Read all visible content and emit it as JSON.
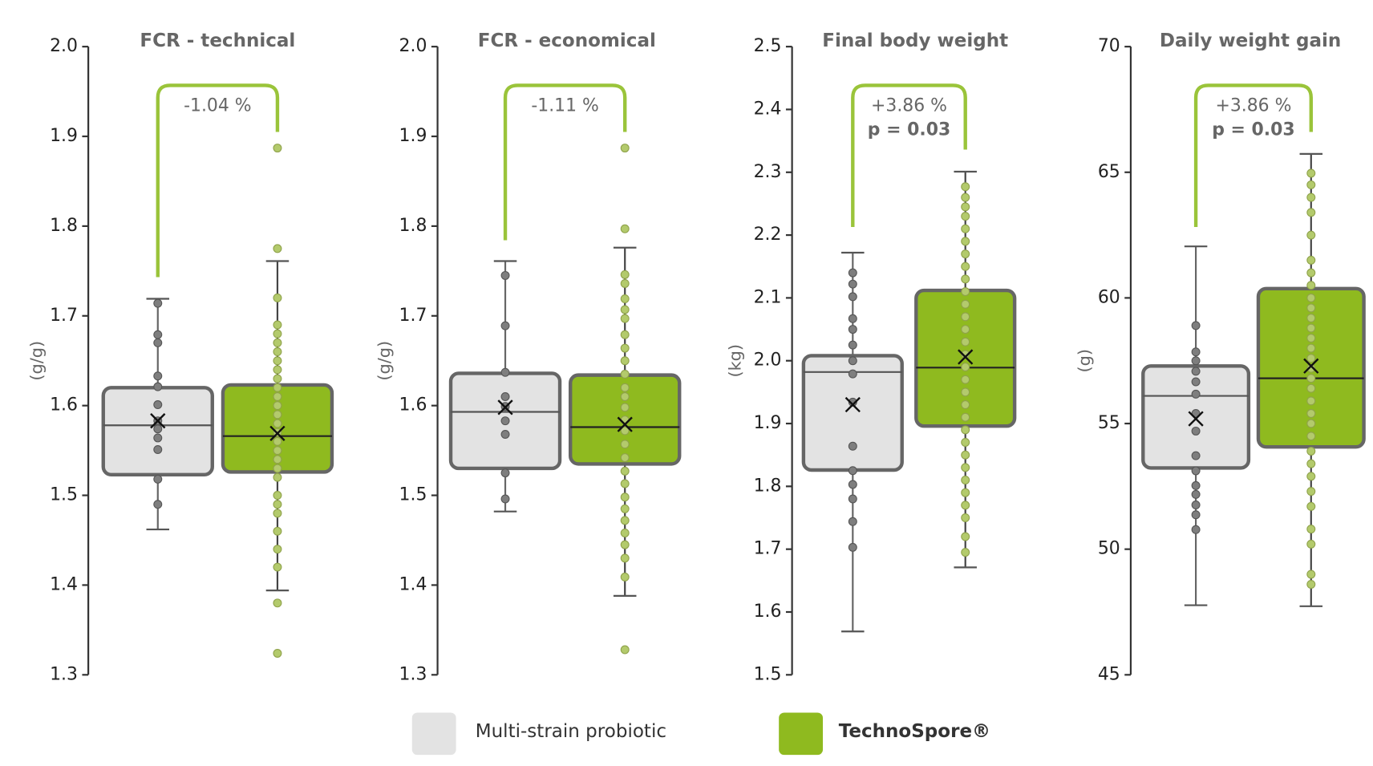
{
  "chart_data": [
    {
      "type": "box",
      "title": "FCR - technical",
      "ylabel": "(g/g)",
      "ylim": [
        1.3,
        2.0
      ],
      "yticks": [
        {
          "value": 2,
          "label": "2.0"
        },
        1.9,
        1.8,
        1.7,
        1.6,
        1.5,
        1.4,
        1.3
      ],
      "annotations": [
        "-1.04 %"
      ],
      "series": [
        {
          "name": "Multi-strain probiotic",
          "color": "#e3e3e3",
          "whisker_low": 1.462,
          "q1": 1.523,
          "median": 1.578,
          "q3": 1.62,
          "whisker_high": 1.719,
          "mean": 1.583,
          "points": [
            1.714,
            1.679,
            1.67,
            1.633,
            1.621,
            1.601,
            1.583,
            1.574,
            1.564,
            1.551,
            1.518,
            1.49
          ]
        },
        {
          "name": "TechnoSpore®",
          "color": "#8fba1f",
          "whisker_low": 1.394,
          "q1": 1.526,
          "median": 1.566,
          "q3": 1.623,
          "whisker_high": 1.761,
          "mean": 1.569,
          "points": [
            1.887,
            1.775,
            1.72,
            1.69,
            1.68,
            1.67,
            1.66,
            1.65,
            1.64,
            1.63,
            1.62,
            1.61,
            1.6,
            1.59,
            1.58,
            1.57,
            1.56,
            1.55,
            1.54,
            1.53,
            1.52,
            1.5,
            1.49,
            1.48,
            1.46,
            1.44,
            1.42,
            1.38,
            1.324
          ]
        }
      ]
    },
    {
      "type": "box",
      "title": "FCR - economical",
      "ylabel": "(g/g)",
      "ylim": [
        1.3,
        2.0
      ],
      "yticks": [
        {
          "value": 2,
          "label": "2.0"
        },
        1.9,
        1.8,
        1.7,
        1.6,
        1.5,
        1.4,
        1.3
      ],
      "annotations": [
        "-1.11 %"
      ],
      "series": [
        {
          "color": "#e3e3e3",
          "whisker_low": 1.482,
          "q1": 1.53,
          "median": 1.593,
          "q3": 1.636,
          "whisker_high": 1.761,
          "mean": 1.598,
          "points": [
            1.745,
            1.689,
            1.637,
            1.61,
            1.599,
            1.583,
            1.568,
            1.525,
            1.496
          ]
        },
        {
          "color": "#8fba1f",
          "whisker_low": 1.388,
          "q1": 1.535,
          "median": 1.576,
          "q3": 1.634,
          "whisker_high": 1.776,
          "mean": 1.579,
          "points": [
            1.887,
            1.797,
            1.746,
            1.736,
            1.719,
            1.707,
            1.697,
            1.679,
            1.664,
            1.65,
            1.635,
            1.62,
            1.61,
            1.598,
            1.584,
            1.572,
            1.557,
            1.542,
            1.527,
            1.513,
            1.498,
            1.485,
            1.472,
            1.458,
            1.445,
            1.43,
            1.409,
            1.328
          ]
        }
      ]
    },
    {
      "type": "box",
      "title": "Final body weight",
      "ylabel": "(kg)",
      "ylim": [
        1.5,
        2.5
      ],
      "yticks": [
        2.5,
        2.4,
        2.3,
        2.2,
        2.1,
        {
          "value": 2,
          "label": "2.0"
        },
        1.9,
        1.8,
        1.7,
        1.6,
        1.5
      ],
      "annotations": [
        "+3.86 %",
        "p = 0.03"
      ],
      "series": [
        {
          "color": "#e3e3e3",
          "whisker_low": 1.569,
          "q1": 1.826,
          "median": 1.982,
          "q3": 2.008,
          "whisker_high": 2.172,
          "mean": 1.93,
          "points": [
            2.14,
            2.122,
            2.102,
            2.067,
            2.05,
            2.025,
            2.0,
            1.979,
            1.934,
            1.864,
            1.825,
            1.803,
            1.78,
            1.744,
            1.703
          ]
        },
        {
          "color": "#8fba1f",
          "whisker_low": 1.671,
          "q1": 1.896,
          "median": 1.989,
          "q3": 2.112,
          "whisker_high": 2.301,
          "mean": 2.006,
          "points": [
            2.277,
            2.26,
            2.245,
            2.23,
            2.21,
            2.19,
            2.17,
            2.15,
            2.13,
            2.11,
            2.09,
            2.07,
            2.05,
            2.03,
            2.01,
            1.99,
            1.97,
            1.95,
            1.93,
            1.91,
            1.89,
            1.87,
            1.85,
            1.83,
            1.81,
            1.79,
            1.77,
            1.75,
            1.72,
            1.695
          ]
        }
      ]
    },
    {
      "type": "box",
      "title": "Daily weight gain",
      "ylabel": "(g)",
      "ylim": [
        45,
        70
      ],
      "yticks": [
        70,
        65,
        60,
        55,
        50,
        45
      ],
      "annotations": [
        "+3.86 %",
        "p = 0.03"
      ],
      "series": [
        {
          "color": "#e3e3e3",
          "whisker_low": 47.77,
          "q1": 53.23,
          "median": 56.1,
          "q3": 57.29,
          "whisker_high": 62.05,
          "mean": 55.19,
          "points": [
            58.9,
            57.85,
            57.5,
            57.08,
            56.66,
            56.17,
            55.4,
            54.7,
            53.72,
            53.12,
            52.53,
            52.18,
            51.76,
            51.37,
            50.78
          ]
        },
        {
          "color": "#8fba1f",
          "whisker_low": 47.73,
          "q1": 54.07,
          "median": 56.8,
          "q3": 60.37,
          "whisker_high": 65.73,
          "mean": 57.29,
          "points": [
            64.96,
            64.5,
            64.0,
            63.4,
            62.5,
            61.5,
            61.0,
            60.5,
            60.0,
            59.6,
            59.2,
            58.8,
            58.4,
            58.0,
            57.6,
            57.2,
            56.8,
            56.4,
            55.9,
            55.4,
            55.0,
            54.5,
            53.9,
            53.4,
            52.9,
            52.3,
            51.7,
            50.8,
            50.2,
            49.0,
            48.6
          ]
        }
      ]
    }
  ]
}
